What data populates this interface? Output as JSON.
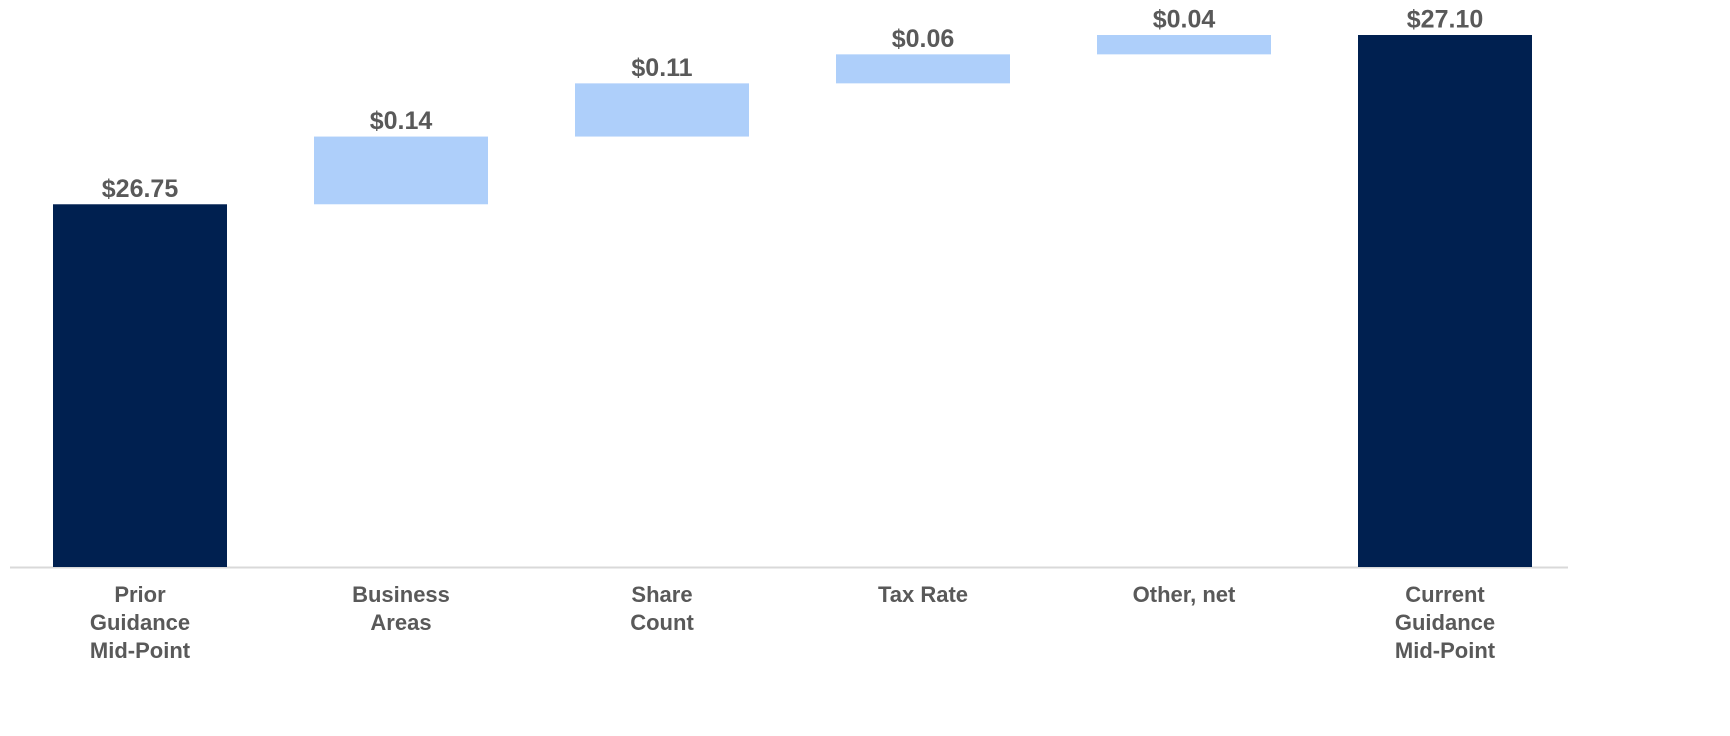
{
  "chart_data": {
    "type": "waterfall",
    "categories": [
      [
        "Prior",
        "Guidance",
        "Mid-Point"
      ],
      [
        "Business",
        "Areas"
      ],
      [
        "Share",
        "Count"
      ],
      [
        "Tax Rate"
      ],
      [
        "Other, net"
      ],
      [
        "Current",
        "Guidance",
        "Mid-Point"
      ]
    ],
    "values": [
      26.75,
      0.14,
      0.11,
      0.06,
      0.04,
      27.1
    ],
    "value_labels": [
      "$26.75",
      "$0.14",
      "$0.11",
      "$0.06",
      "$0.04",
      "$27.10"
    ],
    "is_total": [
      true,
      false,
      false,
      false,
      false,
      true
    ],
    "colors": [
      "#002050",
      "#aecffa",
      "#aecffa",
      "#aecffa",
      "#aecffa",
      "#002050"
    ],
    "ylim": [
      26.0,
      27.1
    ]
  }
}
